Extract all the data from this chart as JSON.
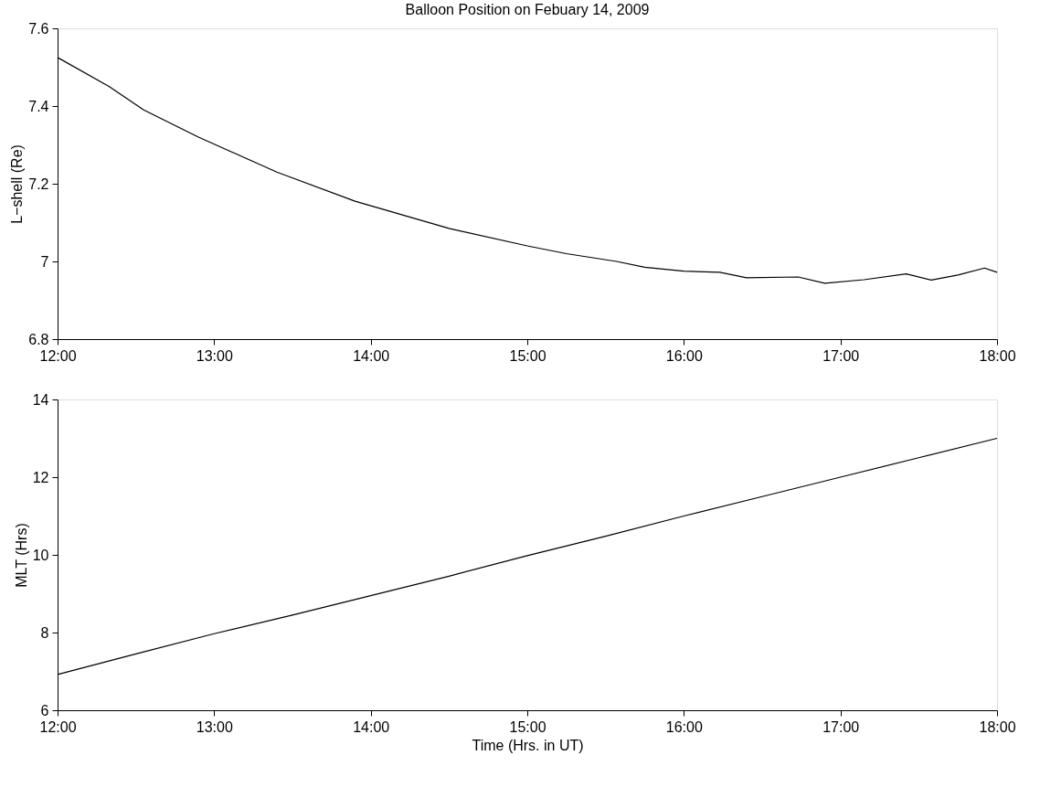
{
  "chart_data": [
    {
      "type": "line",
      "title": "Balloon Position on Febuary 14, 2009",
      "ylabel": "L−shell (Re)",
      "x": [
        12,
        12.33,
        12.55,
        12.9,
        13.4,
        13.9,
        14.5,
        15.0,
        15.25,
        15.57,
        15.75,
        16.0,
        16.23,
        16.4,
        16.73,
        16.9,
        17.15,
        17.42,
        17.58,
        17.75,
        17.92,
        18.0
      ],
      "series": [
        {
          "color": "#000000",
          "values": [
            7.525,
            7.45,
            7.39,
            7.32,
            7.23,
            7.155,
            7.085,
            7.04,
            7.02,
            7.0,
            6.985,
            6.975,
            6.972,
            6.958,
            6.96,
            6.944,
            6.953,
            6.968,
            6.952,
            6.965,
            6.983,
            6.972
          ]
        }
      ],
      "xlim": [
        12,
        18
      ],
      "xticks": [
        {
          "value": 12,
          "label": "12:00"
        },
        {
          "value": 13,
          "label": "13:00"
        },
        {
          "value": 14,
          "label": "14:00"
        },
        {
          "value": 15,
          "label": "15:00"
        },
        {
          "value": 16,
          "label": "16:00"
        },
        {
          "value": 17,
          "label": "17:00"
        },
        {
          "value": 18,
          "label": "18:00"
        }
      ],
      "ylim": [
        6.8,
        7.6
      ],
      "yticks": [
        6.8,
        7,
        7.2,
        7.4,
        7.6
      ],
      "grid": false
    },
    {
      "type": "line",
      "xlabel": "Time (Hrs. in UT)",
      "ylabel": "MLT (Hrs)",
      "x": [
        12,
        12.5,
        13,
        13.5,
        14,
        14.5,
        15,
        15.5,
        16,
        16.5,
        17,
        17.5,
        18
      ],
      "series": [
        {
          "color": "#000000",
          "values": [
            6.92,
            7.45,
            7.97,
            8.45,
            8.95,
            9.45,
            9.98,
            10.48,
            11.0,
            11.5,
            12.0,
            12.5,
            13.0
          ]
        }
      ],
      "xlim": [
        12,
        18
      ],
      "xticks": [
        {
          "value": 12,
          "label": "12:00"
        },
        {
          "value": 13,
          "label": "13:00"
        },
        {
          "value": 14,
          "label": "14:00"
        },
        {
          "value": 15,
          "label": "15:00"
        },
        {
          "value": 16,
          "label": "16:00"
        },
        {
          "value": 17,
          "label": "17:00"
        },
        {
          "value": 18,
          "label": "18:00"
        }
      ],
      "ylim": [
        6,
        14
      ],
      "yticks": [
        6,
        8,
        10,
        12,
        14
      ],
      "grid": false
    }
  ]
}
